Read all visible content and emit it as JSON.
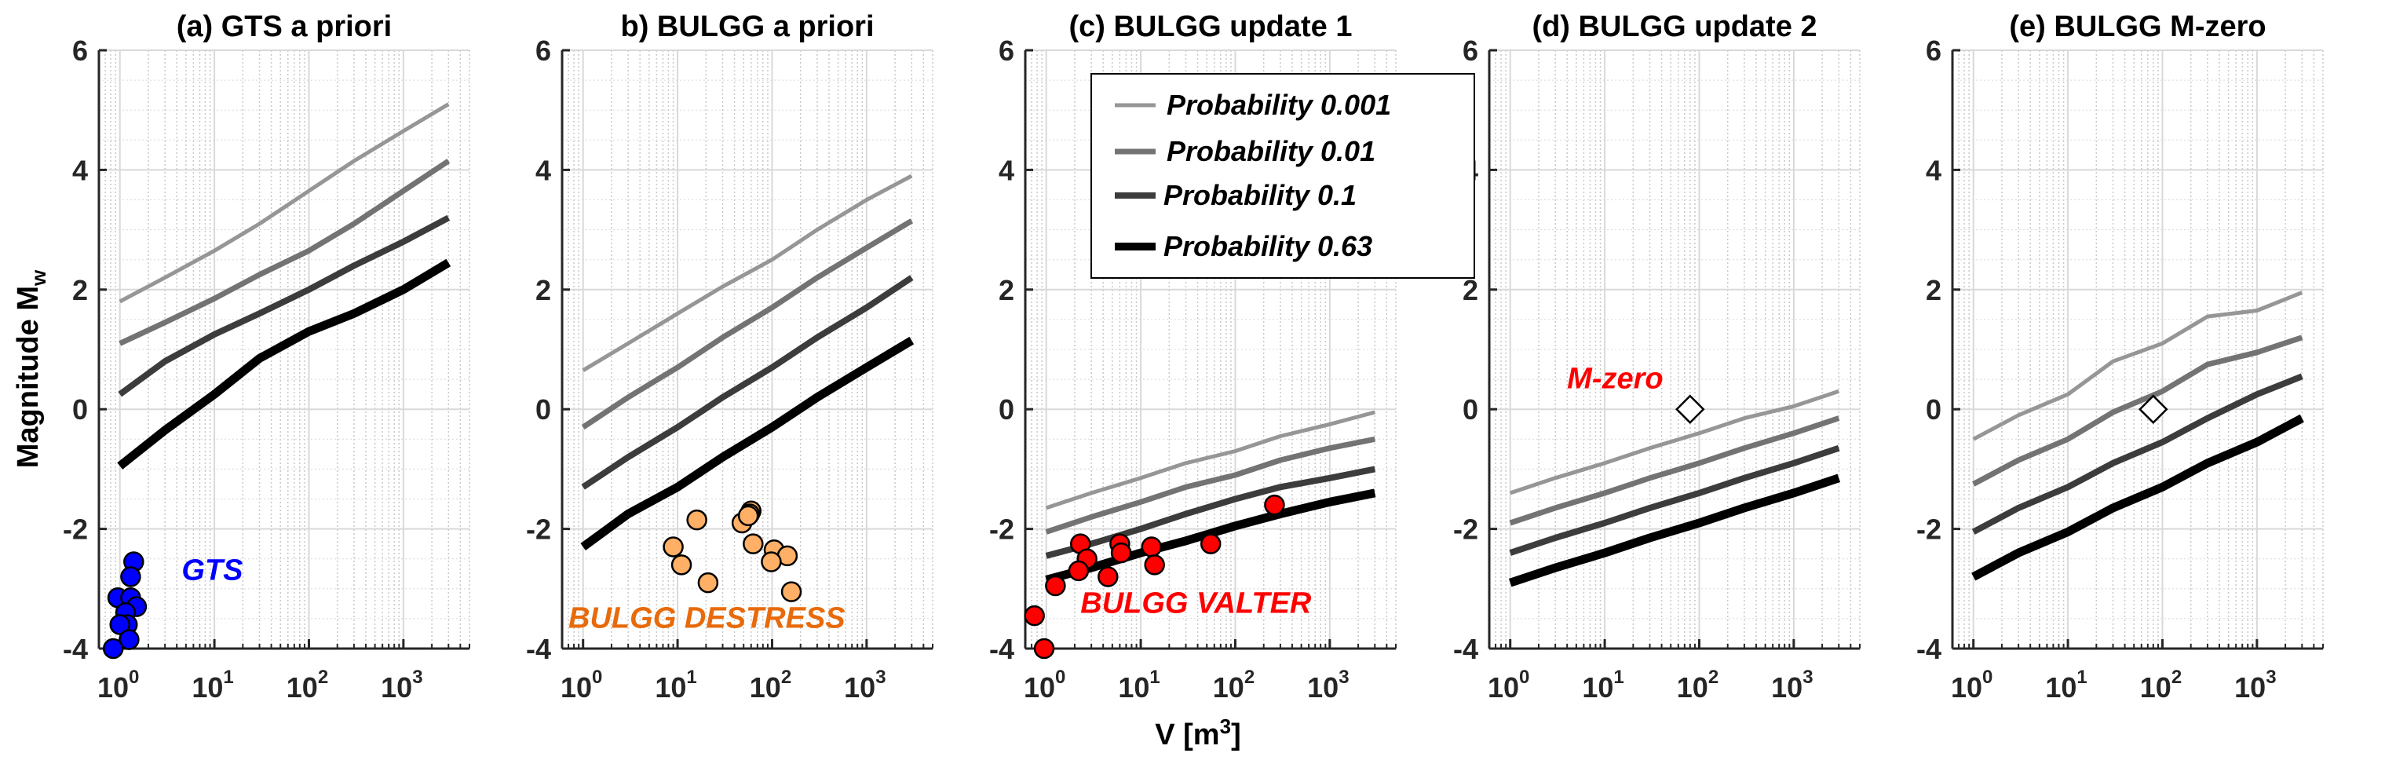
{
  "figure": {
    "ylabel": "Magnitude M",
    "ylabel_sub": "w",
    "xlabel": "V [m",
    "xlabel_sup": "3",
    "xlabel_tail": "]"
  },
  "legend": {
    "placement": "top-left of panel (c)",
    "entries": [
      {
        "label": "Probability 0.001",
        "color": "#969696"
      },
      {
        "label": "Probability 0.01",
        "color": "#737373"
      },
      {
        "label": "Probability 0.1",
        "color": "#3c3c3c"
      },
      {
        "label": "Probability 0.63",
        "color": "#000000"
      }
    ]
  },
  "chart_data": [
    {
      "type": "line",
      "title": "(a) GTS a priori",
      "xscale": "log",
      "xlim": [
        0.6,
        5000
      ],
      "ylim": [
        -4,
        6
      ],
      "yticks": [
        -4,
        -2,
        0,
        2,
        4,
        6
      ],
      "xticks": [
        {
          "base": "10",
          "exp": "0"
        },
        {
          "base": "10",
          "exp": "1"
        },
        {
          "base": "10",
          "exp": "2"
        },
        {
          "base": "10",
          "exp": "3"
        }
      ],
      "grid": true,
      "x": [
        1,
        3,
        10,
        30,
        100,
        300,
        1000,
        3000
      ],
      "series": [
        {
          "name": "Probability 0.001",
          "values": [
            1.8,
            2.2,
            2.65,
            3.1,
            3.65,
            4.15,
            4.65,
            5.1
          ]
        },
        {
          "name": "Probability 0.01",
          "values": [
            1.1,
            1.45,
            1.85,
            2.25,
            2.65,
            3.1,
            3.65,
            4.15
          ]
        },
        {
          "name": "Probability 0.1",
          "values": [
            0.25,
            0.8,
            1.25,
            1.6,
            2.0,
            2.4,
            2.8,
            3.2
          ]
        },
        {
          "name": "Probability 0.63",
          "values": [
            -0.95,
            -0.35,
            0.25,
            0.85,
            1.3,
            1.6,
            2.0,
            2.45
          ]
        }
      ],
      "scatter": {
        "name": "GTS",
        "color": "#0000ff",
        "points": [
          [
            1.4,
            -2.55
          ],
          [
            1.3,
            -2.8
          ],
          [
            0.95,
            -3.15
          ],
          [
            1.3,
            -3.15
          ],
          [
            1.5,
            -3.3
          ],
          [
            1.15,
            -3.4
          ],
          [
            1.2,
            -3.6
          ],
          [
            1.0,
            -3.6
          ],
          [
            1.25,
            -3.85
          ],
          [
            0.85,
            -4.0
          ]
        ]
      },
      "annotation": {
        "text": "GTS",
        "x": 4.5,
        "y": -2.85,
        "color": "#0000ff"
      }
    },
    {
      "type": "line",
      "title": "b) BULGG a priori",
      "xscale": "log",
      "xlim": [
        0.6,
        5000
      ],
      "ylim": [
        -4,
        6
      ],
      "yticks": [
        -4,
        -2,
        0,
        2,
        4,
        6
      ],
      "xticks": [
        {
          "base": "10",
          "exp": "0"
        },
        {
          "base": "10",
          "exp": "1"
        },
        {
          "base": "10",
          "exp": "2"
        },
        {
          "base": "10",
          "exp": "3"
        }
      ],
      "grid": true,
      "x": [
        1,
        3,
        10,
        30,
        100,
        300,
        1000,
        3000
      ],
      "series": [
        {
          "name": "Probability 0.001",
          "values": [
            0.65,
            1.1,
            1.6,
            2.05,
            2.5,
            3.0,
            3.5,
            3.9
          ]
        },
        {
          "name": "Probability 0.01",
          "values": [
            -0.3,
            0.2,
            0.7,
            1.2,
            1.7,
            2.2,
            2.7,
            3.15
          ]
        },
        {
          "name": "Probability 0.1",
          "values": [
            -1.3,
            -0.8,
            -0.3,
            0.2,
            0.7,
            1.2,
            1.7,
            2.2
          ]
        },
        {
          "name": "Probability 0.63",
          "values": [
            -2.3,
            -1.75,
            -1.3,
            -0.8,
            -0.3,
            0.2,
            0.7,
            1.15
          ]
        }
      ],
      "scatter": {
        "name": "BULGG DESTRESS",
        "color": "#ffb066",
        "points": [
          [
            16,
            -1.85
          ],
          [
            60,
            -1.7
          ],
          [
            58,
            -1.75
          ],
          [
            48,
            -1.9
          ],
          [
            56,
            -1.78
          ],
          [
            9,
            -2.3
          ],
          [
            63,
            -2.25
          ],
          [
            105,
            -2.35
          ],
          [
            145,
            -2.45
          ],
          [
            98,
            -2.55
          ],
          [
            11,
            -2.6
          ],
          [
            21,
            -2.9
          ],
          [
            160,
            -3.05
          ]
        ]
      },
      "annotation": {
        "text": "BULGG DESTRESS",
        "x": 0.7,
        "y": -3.65,
        "color": "#e86a0a"
      }
    },
    {
      "type": "line",
      "title": "(c) BULGG update 1",
      "xscale": "log",
      "xlim": [
        0.6,
        5000
      ],
      "ylim": [
        -4,
        6
      ],
      "yticks": [
        -4,
        -2,
        0,
        2,
        4,
        6
      ],
      "xticks": [
        {
          "base": "10",
          "exp": "0"
        },
        {
          "base": "10",
          "exp": "1"
        },
        {
          "base": "10",
          "exp": "2"
        },
        {
          "base": "10",
          "exp": "3"
        }
      ],
      "grid": true,
      "x": [
        1,
        3,
        10,
        30,
        100,
        300,
        1000,
        3000
      ],
      "series": [
        {
          "name": "Probability 0.001",
          "values": [
            -1.65,
            -1.4,
            -1.15,
            -0.9,
            -0.7,
            -0.45,
            -0.25,
            -0.05
          ]
        },
        {
          "name": "Probability 0.01",
          "values": [
            -2.05,
            -1.8,
            -1.55,
            -1.3,
            -1.1,
            -0.85,
            -0.65,
            -0.5
          ]
        },
        {
          "name": "Probability 0.1",
          "values": [
            -2.45,
            -2.25,
            -2.0,
            -1.75,
            -1.5,
            -1.3,
            -1.15,
            -1.0
          ]
        },
        {
          "name": "Probability 0.63",
          "values": [
            -2.85,
            -2.65,
            -2.4,
            -2.2,
            -1.95,
            -1.75,
            -1.55,
            -1.4
          ]
        }
      ],
      "scatter": {
        "name": "BULGG VALTER",
        "color": "#ff0000",
        "points": [
          [
            260,
            -1.6
          ],
          [
            2.3,
            -2.25
          ],
          [
            6,
            -2.25
          ],
          [
            13,
            -2.3
          ],
          [
            55,
            -2.25
          ],
          [
            6.2,
            -2.4
          ],
          [
            2.7,
            -2.5
          ],
          [
            14,
            -2.6
          ],
          [
            2.2,
            -2.7
          ],
          [
            4.5,
            -2.8
          ],
          [
            1.25,
            -2.95
          ],
          [
            0.75,
            -3.45
          ],
          [
            0.95,
            -4.0
          ]
        ]
      },
      "annotation": {
        "text": "BULGG VALTER",
        "x": 2.3,
        "y": -3.4,
        "color": "#ff0000"
      }
    },
    {
      "type": "line",
      "title": "(d) BULGG update 2",
      "xscale": "log",
      "xlim": [
        0.6,
        5000
      ],
      "ylim": [
        -4,
        6
      ],
      "yticks": [
        -4,
        -2,
        0,
        2,
        4,
        6
      ],
      "xticks": [
        {
          "base": "10",
          "exp": "0"
        },
        {
          "base": "10",
          "exp": "1"
        },
        {
          "base": "10",
          "exp": "2"
        },
        {
          "base": "10",
          "exp": "3"
        }
      ],
      "grid": true,
      "x": [
        1,
        3,
        10,
        30,
        100,
        300,
        1000,
        3000
      ],
      "series": [
        {
          "name": "Probability 0.001",
          "values": [
            -1.4,
            -1.15,
            -0.9,
            -0.65,
            -0.4,
            -0.15,
            0.05,
            0.3
          ]
        },
        {
          "name": "Probability 0.01",
          "values": [
            -1.9,
            -1.65,
            -1.4,
            -1.15,
            -0.9,
            -0.65,
            -0.4,
            -0.15
          ]
        },
        {
          "name": "Probability 0.1",
          "values": [
            -2.4,
            -2.15,
            -1.9,
            -1.65,
            -1.4,
            -1.15,
            -0.9,
            -0.65
          ]
        },
        {
          "name": "Probability 0.63",
          "values": [
            -2.9,
            -2.65,
            -2.4,
            -2.15,
            -1.9,
            -1.65,
            -1.4,
            -1.15
          ]
        }
      ],
      "marker": {
        "name": "M-zero",
        "x": 80,
        "y": 0.0,
        "shape": "diamond",
        "fill": "#ffffff",
        "stroke": "#000000"
      },
      "annotation": {
        "text": "M-zero",
        "x": 4.0,
        "y": 0.35,
        "color": "#ff0000"
      }
    },
    {
      "type": "line",
      "title": "(e) BULGG M-zero",
      "xscale": "log",
      "xlim": [
        0.6,
        5000
      ],
      "ylim": [
        -4,
        6
      ],
      "yticks": [
        -4,
        -2,
        0,
        2,
        4,
        6
      ],
      "xticks": [
        {
          "base": "10",
          "exp": "0"
        },
        {
          "base": "10",
          "exp": "1"
        },
        {
          "base": "10",
          "exp": "2"
        },
        {
          "base": "10",
          "exp": "3"
        }
      ],
      "grid": true,
      "x": [
        1,
        3,
        10,
        30,
        100,
        300,
        1000,
        3000
      ],
      "series": [
        {
          "name": "Probability 0.001",
          "values": [
            -0.5,
            -0.1,
            0.25,
            0.8,
            1.1,
            1.55,
            1.65,
            1.95
          ]
        },
        {
          "name": "Probability 0.01",
          "values": [
            -1.25,
            -0.85,
            -0.5,
            -0.05,
            0.3,
            0.75,
            0.95,
            1.2
          ]
        },
        {
          "name": "Probability 0.1",
          "values": [
            -2.05,
            -1.65,
            -1.3,
            -0.9,
            -0.55,
            -0.15,
            0.25,
            0.55
          ]
        },
        {
          "name": "Probability 0.63",
          "values": [
            -2.8,
            -2.4,
            -2.05,
            -1.65,
            -1.3,
            -0.9,
            -0.55,
            -0.15
          ]
        }
      ],
      "marker": {
        "name": "M-zero",
        "x": 80,
        "y": 0.0,
        "shape": "diamond",
        "fill": "#ffffff",
        "stroke": "#000000"
      }
    }
  ]
}
